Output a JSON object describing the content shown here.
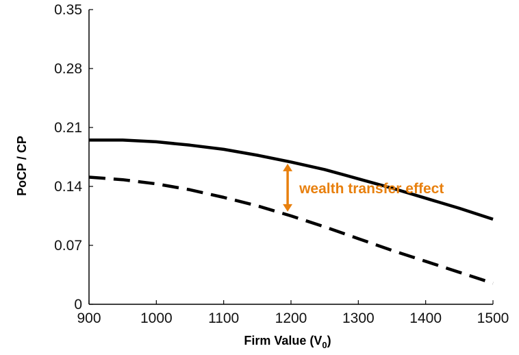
{
  "chart_data": {
    "type": "line",
    "xlabel": "Firm Value (V",
    "xlabel_sub": "0",
    "xlabel_close": ")",
    "ylabel": "PoCP / CP",
    "xlim": [
      900,
      1500
    ],
    "ylim": [
      0,
      0.35
    ],
    "xticks": [
      "900",
      "1000",
      "1100",
      "1200",
      "1300",
      "1400",
      "1500"
    ],
    "yticks": [
      "0",
      "0.07",
      "0.14",
      "0.21",
      "0.28",
      "0.35"
    ],
    "grid": false,
    "series": [
      {
        "style": "solid",
        "color": "#000000",
        "x": [
          900,
          950,
          1000,
          1050,
          1100,
          1150,
          1200,
          1250,
          1300,
          1350,
          1400,
          1450,
          1500
        ],
        "y": [
          0.195,
          0.195,
          0.193,
          0.189,
          0.184,
          0.177,
          0.169,
          0.16,
          0.149,
          0.138,
          0.126,
          0.114,
          0.101
        ]
      },
      {
        "style": "dashed",
        "color": "#000000",
        "x": [
          900,
          950,
          1000,
          1050,
          1100,
          1150,
          1200,
          1250,
          1300,
          1350,
          1400,
          1450,
          1500
        ],
        "y": [
          0.151,
          0.148,
          0.143,
          0.136,
          0.127,
          0.117,
          0.105,
          0.092,
          0.078,
          0.064,
          0.051,
          0.038,
          0.025
        ]
      }
    ],
    "annotation": {
      "text": "wealth transfer effect",
      "color": "#E8800E",
      "x": 1195,
      "y_from": 0.167,
      "y_to": 0.11
    }
  }
}
